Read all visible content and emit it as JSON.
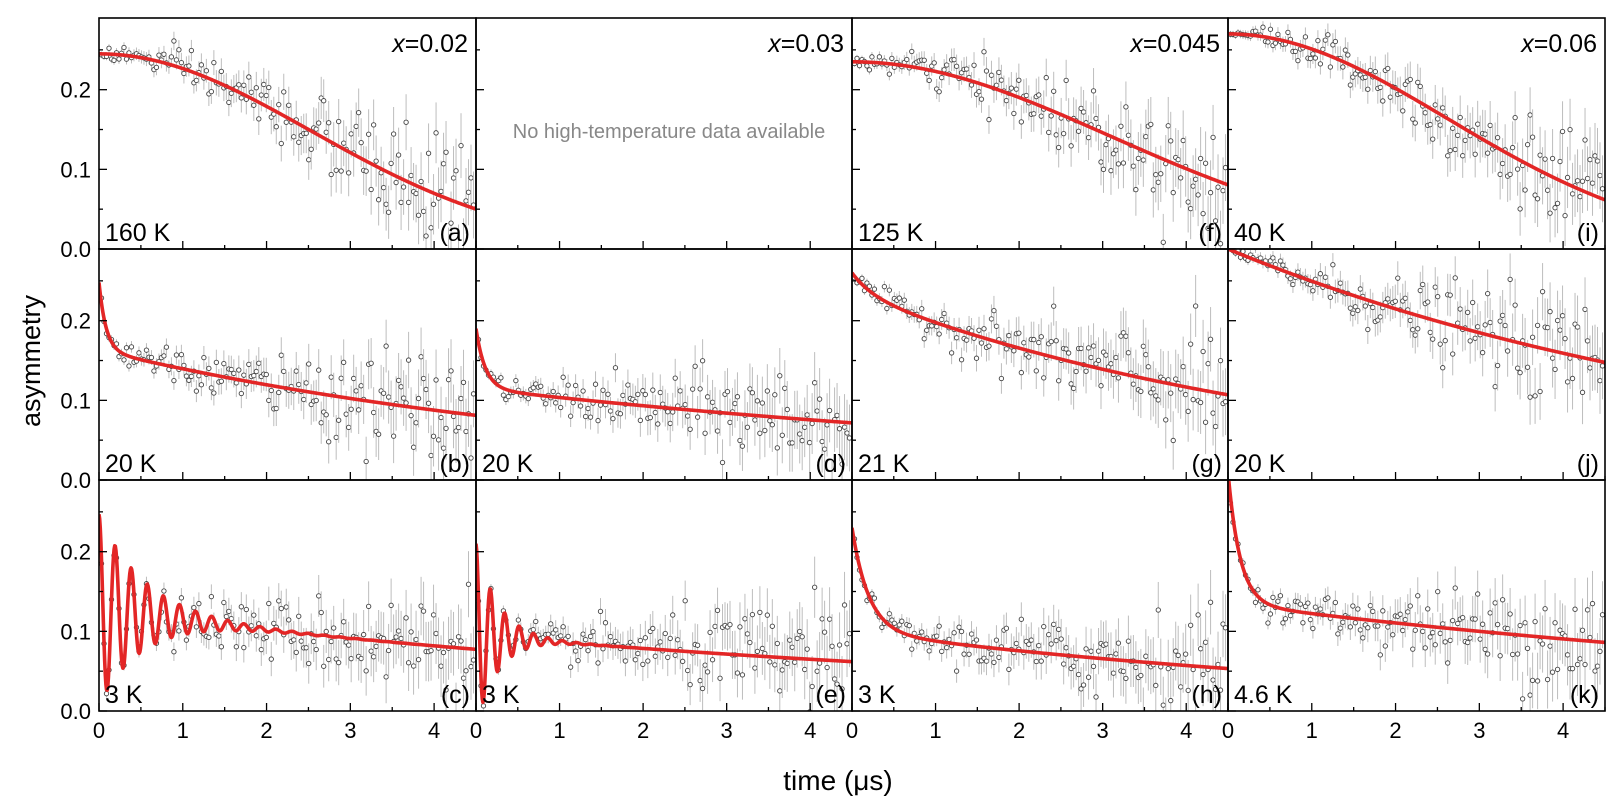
{
  "figure": {
    "ylabel": "asymmetry",
    "xlabel": "time (μs)",
    "colors": {
      "fit": "#e32626",
      "data": "#444444",
      "error_bar": "#bdbdbd",
      "axis": "#000000",
      "note": "#888888"
    }
  },
  "chart_data": [
    {
      "id": "a",
      "type": "scatter",
      "composition_label": "x",
      "composition_value": "=0.02",
      "temperature": "160 K",
      "panel_label": "(a)",
      "data_available": true,
      "xlim": [
        0,
        4.5
      ],
      "ylim": [
        0,
        0.29
      ],
      "x_ticks": [
        0,
        1,
        2,
        3,
        4
      ],
      "y_ticks": [
        0.0,
        0.1,
        0.2
      ],
      "grid": false,
      "fit": {
        "model": "gaussian",
        "a0": 0.245,
        "rate": 0.28,
        "const": 0.0
      }
    },
    {
      "id": "d0",
      "type": "scatter",
      "composition_label": "x",
      "composition_value": "=0.03",
      "temperature": "",
      "panel_label": "",
      "data_available": false,
      "note": "No high-temperature data available",
      "xlim": [
        0,
        4.5
      ],
      "ylim": [
        0,
        0.29
      ],
      "x_ticks": [
        0,
        1,
        2,
        3,
        4
      ],
      "y_ticks": [
        0.0,
        0.1,
        0.2
      ],
      "grid": false
    },
    {
      "id": "f",
      "type": "scatter",
      "composition_label": "x",
      "composition_value": "=0.045",
      "temperature": "125 K",
      "panel_label": "(f)",
      "data_available": true,
      "xlim": [
        0,
        4.5
      ],
      "ylim": [
        0,
        0.29
      ],
      "x_ticks": [
        0,
        1,
        2,
        3,
        4
      ],
      "y_ticks": [
        0.0,
        0.1,
        0.2
      ],
      "grid": false,
      "fit": {
        "model": "gaussian",
        "a0": 0.235,
        "rate": 0.23,
        "const": 0.0
      }
    },
    {
      "id": "i",
      "type": "scatter",
      "composition_label": "x",
      "composition_value": "=0.06",
      "temperature": "40 K",
      "panel_label": "(i)",
      "data_available": true,
      "xlim": [
        0,
        4.5
      ],
      "ylim": [
        0,
        0.29
      ],
      "x_ticks": [
        0,
        1,
        2,
        3,
        4
      ],
      "y_ticks": [
        0.0,
        0.1,
        0.2
      ],
      "grid": false,
      "fit": {
        "model": "gaussian",
        "a0": 0.27,
        "rate": 0.27,
        "const": 0.0
      }
    },
    {
      "id": "b",
      "type": "scatter",
      "temperature": "20 K",
      "panel_label": "(b)",
      "data_available": true,
      "xlim": [
        0,
        4.5
      ],
      "ylim": [
        0,
        0.29
      ],
      "x_ticks": [
        0,
        1,
        2,
        3,
        4
      ],
      "y_ticks": [
        0.0,
        0.1,
        0.2
      ],
      "grid": false,
      "fit": {
        "model": "fast_slow",
        "fast_amp": 0.085,
        "fast_rate": 12,
        "slow_amp": 0.163,
        "slow_rate": 0.155
      }
    },
    {
      "id": "d",
      "type": "scatter",
      "temperature": "20 K",
      "panel_label": "(d)",
      "data_available": true,
      "xlim": [
        0,
        4.5
      ],
      "ylim": [
        0,
        0.29
      ],
      "x_ticks": [
        0,
        1,
        2,
        3,
        4
      ],
      "y_ticks": [
        0.0,
        0.1,
        0.2
      ],
      "grid": false,
      "fit": {
        "model": "fast_slow",
        "fast_amp": 0.075,
        "fast_rate": 9,
        "slow_amp": 0.115,
        "slow_rate": 0.105
      }
    },
    {
      "id": "g",
      "type": "scatter",
      "temperature": "21 K",
      "panel_label": "(g)",
      "data_available": true,
      "xlim": [
        0,
        4.5
      ],
      "ylim": [
        0,
        0.29
      ],
      "x_ticks": [
        0,
        1,
        2,
        3,
        4
      ],
      "y_ticks": [
        0.0,
        0.1,
        0.2
      ],
      "grid": false,
      "fit": {
        "model": "fast_slow",
        "fast_amp": 0.025,
        "fast_rate": 4,
        "slow_amp": 0.235,
        "slow_rate": 0.175
      }
    },
    {
      "id": "j",
      "type": "scatter",
      "temperature": "20 K",
      "panel_label": "(j)",
      "data_available": true,
      "xlim": [
        0,
        4.5
      ],
      "ylim": [
        0,
        0.29
      ],
      "x_ticks": [
        0,
        1,
        2,
        3,
        4
      ],
      "y_ticks": [
        0.0,
        0.1,
        0.2
      ],
      "grid": false,
      "fit": {
        "model": "fast_slow",
        "fast_amp": 0.0,
        "fast_rate": 1,
        "slow_amp": 0.29,
        "slow_rate": 0.15
      }
    },
    {
      "id": "c",
      "type": "scatter",
      "temperature": "3 K",
      "panel_label": "(c)",
      "data_available": true,
      "xlim": [
        0,
        4.5
      ],
      "ylim": [
        0,
        0.29
      ],
      "x_ticks": [
        0,
        1,
        2,
        3,
        4
      ],
      "y_ticks": [
        0.0,
        0.1,
        0.2
      ],
      "grid": false,
      "fit": {
        "model": "oscillating",
        "osc_amp": 0.12,
        "osc_freq": 5.2,
        "osc_damp": 1.9,
        "slow_amp": 0.127,
        "slow_rate": 0.11
      }
    },
    {
      "id": "e",
      "type": "scatter",
      "temperature": "3 K",
      "panel_label": "(e)",
      "data_available": true,
      "xlim": [
        0,
        4.5
      ],
      "ylim": [
        0,
        0.29
      ],
      "x_ticks": [
        0,
        1,
        2,
        3,
        4
      ],
      "y_ticks": [
        0.0,
        0.1,
        0.2
      ],
      "grid": false,
      "fit": {
        "model": "oscillating",
        "osc_amp": 0.115,
        "osc_freq": 5.8,
        "osc_damp": 3.8,
        "slow_amp": 0.095,
        "slow_rate": 0.095
      }
    },
    {
      "id": "h",
      "type": "scatter",
      "temperature": "3 K",
      "panel_label": "(h)",
      "data_available": true,
      "xlim": [
        0,
        4.5
      ],
      "ylim": [
        0,
        0.29
      ],
      "x_ticks": [
        0,
        1,
        2,
        3,
        4
      ],
      "y_ticks": [
        0.0,
        0.1,
        0.2
      ],
      "grid": false,
      "fit": {
        "model": "fast_slow",
        "fast_amp": 0.13,
        "fast_rate": 5,
        "slow_amp": 0.1,
        "slow_rate": 0.14
      }
    },
    {
      "id": "k",
      "type": "scatter",
      "temperature": "4.6 K",
      "panel_label": "(k)",
      "data_available": true,
      "xlim": [
        0,
        4.5
      ],
      "ylim": [
        0,
        0.29
      ],
      "x_ticks": [
        0,
        1,
        2,
        3,
        4
      ],
      "y_ticks": [
        0.0,
        0.1,
        0.2
      ],
      "grid": false,
      "fit": {
        "model": "fast_slow",
        "fast_amp": 0.165,
        "fast_rate": 7,
        "slow_amp": 0.135,
        "slow_rate": 0.1
      }
    }
  ]
}
